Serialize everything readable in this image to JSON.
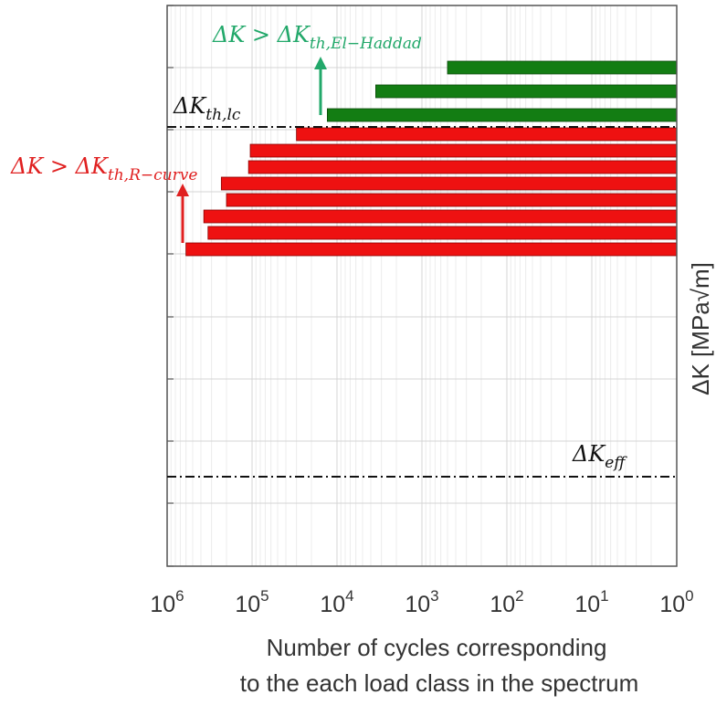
{
  "chart_data": {
    "type": "bar",
    "orientation": "horizontal",
    "x_axis": {
      "scale": "log",
      "reversed": true,
      "range": [
        1000000,
        1
      ],
      "tick_labels": [
        {
          "base": "10",
          "exp": "6"
        },
        {
          "base": "10",
          "exp": "5"
        },
        {
          "base": "10",
          "exp": "4"
        },
        {
          "base": "10",
          "exp": "3"
        },
        {
          "base": "10",
          "exp": "2"
        },
        {
          "base": "10",
          "exp": "1"
        },
        {
          "base": "10",
          "exp": "0"
        }
      ],
      "label_line1": "Number of cycles corresponding",
      "label_line2": "to the each load class in the spectrum"
    },
    "y_axis": {
      "label": "ΔK  [MPa√m]",
      "tick_labels_visible": false,
      "grid": true
    },
    "grid": true,
    "series": [
      {
        "group": "above_el_haddad",
        "color": "#137d13",
        "bars": [
          {
            "cycles": 500
          },
          {
            "cycles": 3500
          },
          {
            "cycles": 13000
          }
        ]
      },
      {
        "group": "above_r_curve",
        "color": "#ee1111",
        "bars": [
          {
            "cycles": 30000
          },
          {
            "cycles": 105000
          },
          {
            "cycles": 110000
          },
          {
            "cycles": 230000
          },
          {
            "cycles": 200000
          },
          {
            "cycles": 370000
          },
          {
            "cycles": 330000
          },
          {
            "cycles": 600000
          }
        ]
      }
    ],
    "reference_lines": [
      {
        "id": "lc",
        "label_main": "ΔK",
        "label_sub": "th,lc",
        "color": "#111111"
      },
      {
        "id": "eff",
        "label_main": "ΔK",
        "label_sub": "eff",
        "color": "#111111"
      }
    ],
    "annotations": [
      {
        "id": "el-haddad",
        "text": "ΔK > ΔK",
        "sub": "th,El−Haddad",
        "color": "#22a86a"
      },
      {
        "id": "r-curve",
        "text": "ΔK > ΔK",
        "sub": "th,R−curve",
        "color": "#e02020"
      }
    ]
  }
}
